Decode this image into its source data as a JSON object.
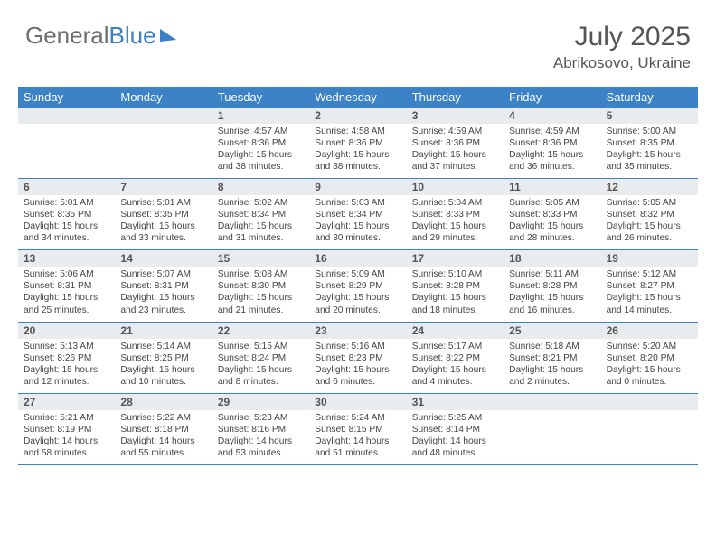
{
  "brand": {
    "name_part1": "General",
    "name_part2": "Blue"
  },
  "title": "July 2025",
  "location": "Abrikosovo, Ukraine",
  "colors": {
    "header_bg": "#3b82c7",
    "header_text": "#ffffff",
    "daynum_bg": "#e9ecef",
    "text": "#444444",
    "rule": "#3b82c7"
  },
  "weekdays": [
    "Sunday",
    "Monday",
    "Tuesday",
    "Wednesday",
    "Thursday",
    "Friday",
    "Saturday"
  ],
  "fonts": {
    "title_size_pt": 30,
    "location_size_pt": 17,
    "weekday_size_pt": 13,
    "daynum_size_pt": 12,
    "body_size_pt": 10
  },
  "layout": {
    "columns": 7,
    "rows": 5,
    "first_day_column_index": 2
  },
  "days": [
    {
      "n": 1,
      "sunrise": "4:57 AM",
      "sunset": "8:36 PM",
      "daylight": "15 hours and 38 minutes."
    },
    {
      "n": 2,
      "sunrise": "4:58 AM",
      "sunset": "8:36 PM",
      "daylight": "15 hours and 38 minutes."
    },
    {
      "n": 3,
      "sunrise": "4:59 AM",
      "sunset": "8:36 PM",
      "daylight": "15 hours and 37 minutes."
    },
    {
      "n": 4,
      "sunrise": "4:59 AM",
      "sunset": "8:36 PM",
      "daylight": "15 hours and 36 minutes."
    },
    {
      "n": 5,
      "sunrise": "5:00 AM",
      "sunset": "8:35 PM",
      "daylight": "15 hours and 35 minutes."
    },
    {
      "n": 6,
      "sunrise": "5:01 AM",
      "sunset": "8:35 PM",
      "daylight": "15 hours and 34 minutes."
    },
    {
      "n": 7,
      "sunrise": "5:01 AM",
      "sunset": "8:35 PM",
      "daylight": "15 hours and 33 minutes."
    },
    {
      "n": 8,
      "sunrise": "5:02 AM",
      "sunset": "8:34 PM",
      "daylight": "15 hours and 31 minutes."
    },
    {
      "n": 9,
      "sunrise": "5:03 AM",
      "sunset": "8:34 PM",
      "daylight": "15 hours and 30 minutes."
    },
    {
      "n": 10,
      "sunrise": "5:04 AM",
      "sunset": "8:33 PM",
      "daylight": "15 hours and 29 minutes."
    },
    {
      "n": 11,
      "sunrise": "5:05 AM",
      "sunset": "8:33 PM",
      "daylight": "15 hours and 28 minutes."
    },
    {
      "n": 12,
      "sunrise": "5:05 AM",
      "sunset": "8:32 PM",
      "daylight": "15 hours and 26 minutes."
    },
    {
      "n": 13,
      "sunrise": "5:06 AM",
      "sunset": "8:31 PM",
      "daylight": "15 hours and 25 minutes."
    },
    {
      "n": 14,
      "sunrise": "5:07 AM",
      "sunset": "8:31 PM",
      "daylight": "15 hours and 23 minutes."
    },
    {
      "n": 15,
      "sunrise": "5:08 AM",
      "sunset": "8:30 PM",
      "daylight": "15 hours and 21 minutes."
    },
    {
      "n": 16,
      "sunrise": "5:09 AM",
      "sunset": "8:29 PM",
      "daylight": "15 hours and 20 minutes."
    },
    {
      "n": 17,
      "sunrise": "5:10 AM",
      "sunset": "8:28 PM",
      "daylight": "15 hours and 18 minutes."
    },
    {
      "n": 18,
      "sunrise": "5:11 AM",
      "sunset": "8:28 PM",
      "daylight": "15 hours and 16 minutes."
    },
    {
      "n": 19,
      "sunrise": "5:12 AM",
      "sunset": "8:27 PM",
      "daylight": "15 hours and 14 minutes."
    },
    {
      "n": 20,
      "sunrise": "5:13 AM",
      "sunset": "8:26 PM",
      "daylight": "15 hours and 12 minutes."
    },
    {
      "n": 21,
      "sunrise": "5:14 AM",
      "sunset": "8:25 PM",
      "daylight": "15 hours and 10 minutes."
    },
    {
      "n": 22,
      "sunrise": "5:15 AM",
      "sunset": "8:24 PM",
      "daylight": "15 hours and 8 minutes."
    },
    {
      "n": 23,
      "sunrise": "5:16 AM",
      "sunset": "8:23 PM",
      "daylight": "15 hours and 6 minutes."
    },
    {
      "n": 24,
      "sunrise": "5:17 AM",
      "sunset": "8:22 PM",
      "daylight": "15 hours and 4 minutes."
    },
    {
      "n": 25,
      "sunrise": "5:18 AM",
      "sunset": "8:21 PM",
      "daylight": "15 hours and 2 minutes."
    },
    {
      "n": 26,
      "sunrise": "5:20 AM",
      "sunset": "8:20 PM",
      "daylight": "15 hours and 0 minutes."
    },
    {
      "n": 27,
      "sunrise": "5:21 AM",
      "sunset": "8:19 PM",
      "daylight": "14 hours and 58 minutes."
    },
    {
      "n": 28,
      "sunrise": "5:22 AM",
      "sunset": "8:18 PM",
      "daylight": "14 hours and 55 minutes."
    },
    {
      "n": 29,
      "sunrise": "5:23 AM",
      "sunset": "8:16 PM",
      "daylight": "14 hours and 53 minutes."
    },
    {
      "n": 30,
      "sunrise": "5:24 AM",
      "sunset": "8:15 PM",
      "daylight": "14 hours and 51 minutes."
    },
    {
      "n": 31,
      "sunrise": "5:25 AM",
      "sunset": "8:14 PM",
      "daylight": "14 hours and 48 minutes."
    }
  ],
  "labels": {
    "sunrise": "Sunrise:",
    "sunset": "Sunset:",
    "daylight": "Daylight:"
  }
}
